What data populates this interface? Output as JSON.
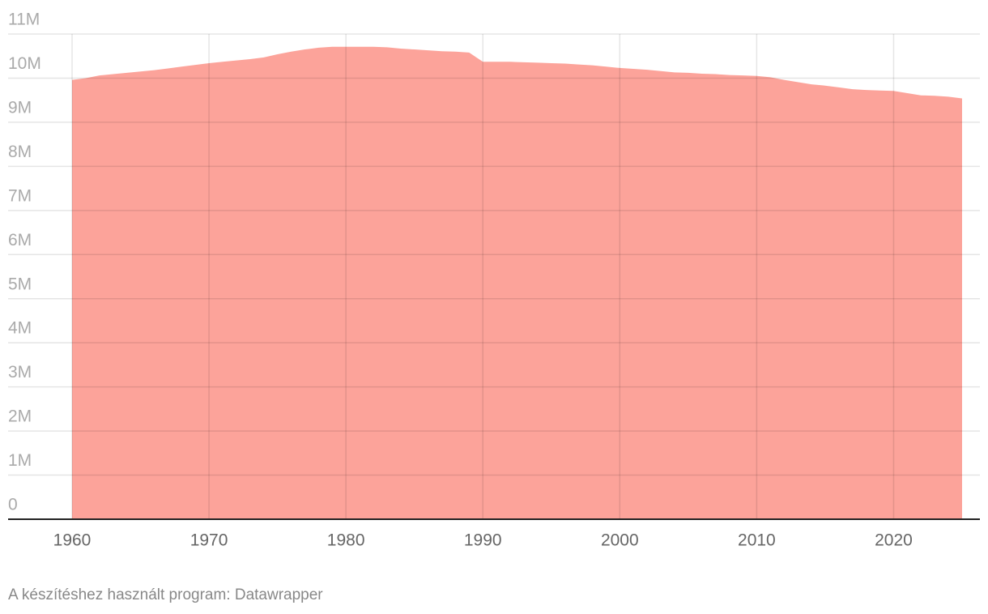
{
  "chart_data": {
    "type": "area",
    "x": [
      1960,
      1961,
      1962,
      1963,
      1964,
      1965,
      1966,
      1967,
      1968,
      1969,
      1970,
      1971,
      1972,
      1973,
      1974,
      1975,
      1976,
      1977,
      1978,
      1979,
      1980,
      1981,
      1982,
      1983,
      1984,
      1985,
      1986,
      1987,
      1988,
      1989,
      1990,
      1991,
      1992,
      1993,
      1994,
      1995,
      1996,
      1997,
      1998,
      1999,
      2000,
      2001,
      2002,
      2003,
      2004,
      2005,
      2006,
      2007,
      2008,
      2009,
      2010,
      2011,
      2012,
      2013,
      2014,
      2015,
      2016,
      2017,
      2018,
      2019,
      2020,
      2021,
      2022,
      2023,
      2024,
      2025
    ],
    "values": [
      9960000,
      10000000,
      10060000,
      10090000,
      10120000,
      10150000,
      10180000,
      10220000,
      10260000,
      10300000,
      10340000,
      10370000,
      10400000,
      10430000,
      10470000,
      10540000,
      10600000,
      10650000,
      10690000,
      10710000,
      10710000,
      10710000,
      10710000,
      10700000,
      10670000,
      10650000,
      10630000,
      10610000,
      10600000,
      10580000,
      10370000,
      10370000,
      10370000,
      10360000,
      10350000,
      10340000,
      10330000,
      10310000,
      10290000,
      10260000,
      10230000,
      10210000,
      10190000,
      10160000,
      10130000,
      10120000,
      10100000,
      10090000,
      10070000,
      10060000,
      10050000,
      10020000,
      9960000,
      9910000,
      9860000,
      9830000,
      9790000,
      9750000,
      9730000,
      9720000,
      9710000,
      9660000,
      9610000,
      9600000,
      9580000,
      9540000
    ],
    "color": "#fca39a",
    "xlim": [
      1960,
      2025
    ],
    "xticks": [
      1960,
      1970,
      1980,
      1990,
      2000,
      2010,
      2020
    ],
    "ylim": [
      0,
      11000000
    ],
    "yticks": [
      0,
      {
        "value": 1000000,
        "label": "1M"
      },
      {
        "value": 2000000,
        "label": "2M"
      },
      {
        "value": 3000000,
        "label": "3M"
      },
      {
        "value": 4000000,
        "label": "4M"
      },
      {
        "value": 5000000,
        "label": "5M"
      },
      {
        "value": 6000000,
        "label": "6M"
      },
      {
        "value": 7000000,
        "label": "7M"
      },
      {
        "value": 8000000,
        "label": "8M"
      },
      {
        "value": 9000000,
        "label": "9M"
      },
      {
        "value": 10000000,
        "label": "10M"
      },
      {
        "value": 11000000,
        "label": "11M"
      }
    ],
    "grid": true,
    "source": "A készítéshez használt program: Datawrapper"
  }
}
